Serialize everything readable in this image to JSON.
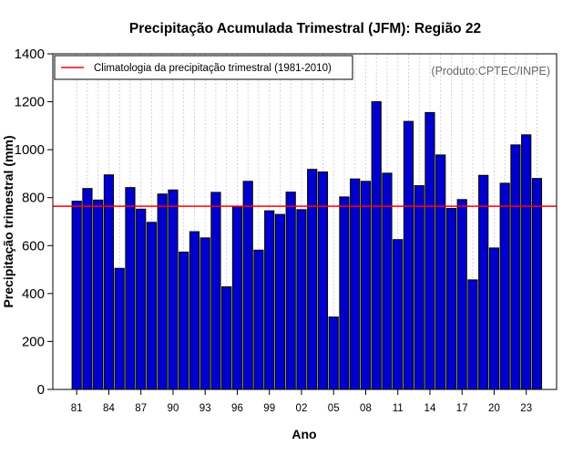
{
  "chart_data": {
    "type": "bar",
    "title": "Precipitação Acumulada Trimestral (JFM): Região 22",
    "xlabel": "Ano",
    "ylabel": "Precipitação trimestral (mm)",
    "ylim": [
      0,
      1400
    ],
    "yticks": [
      0,
      200,
      400,
      600,
      800,
      1000,
      1200,
      1400
    ],
    "xtick_labels": [
      "81",
      "84",
      "87",
      "90",
      "93",
      "96",
      "99",
      "02",
      "05",
      "08",
      "11",
      "14",
      "17",
      "20",
      "23"
    ],
    "xtick_years": [
      1981,
      1984,
      1987,
      1990,
      1993,
      1996,
      1999,
      2002,
      2005,
      2008,
      2011,
      2014,
      2017,
      2020,
      2023
    ],
    "years": [
      1981,
      1982,
      1983,
      1984,
      1985,
      1986,
      1987,
      1988,
      1989,
      1990,
      1991,
      1992,
      1993,
      1994,
      1995,
      1996,
      1997,
      1998,
      1999,
      2000,
      2001,
      2002,
      2003,
      2004,
      2005,
      2006,
      2007,
      2008,
      2009,
      2010,
      2011,
      2012,
      2013,
      2014,
      2015,
      2016,
      2017,
      2018,
      2019,
      2020,
      2021,
      2022,
      2023,
      2024
    ],
    "values": [
      785,
      838,
      790,
      895,
      505,
      842,
      752,
      697,
      815,
      832,
      573,
      658,
      632,
      822,
      428,
      763,
      868,
      581,
      745,
      730,
      823,
      750,
      918,
      907,
      302,
      803,
      878,
      868,
      1200,
      902,
      625,
      1118,
      850,
      1155,
      978,
      755,
      792,
      457,
      893,
      590,
      860,
      1020,
      1062,
      880
    ],
    "bar_color": "#0000cc",
    "climatology": {
      "value": 764,
      "label": "Climatologia da precipitação trimestral (1981-2010)",
      "color": "#ff0000"
    },
    "legend_position": "top-left",
    "credit": "(Produto:CPTEC/INPE)",
    "grid": "vertical dotted"
  }
}
